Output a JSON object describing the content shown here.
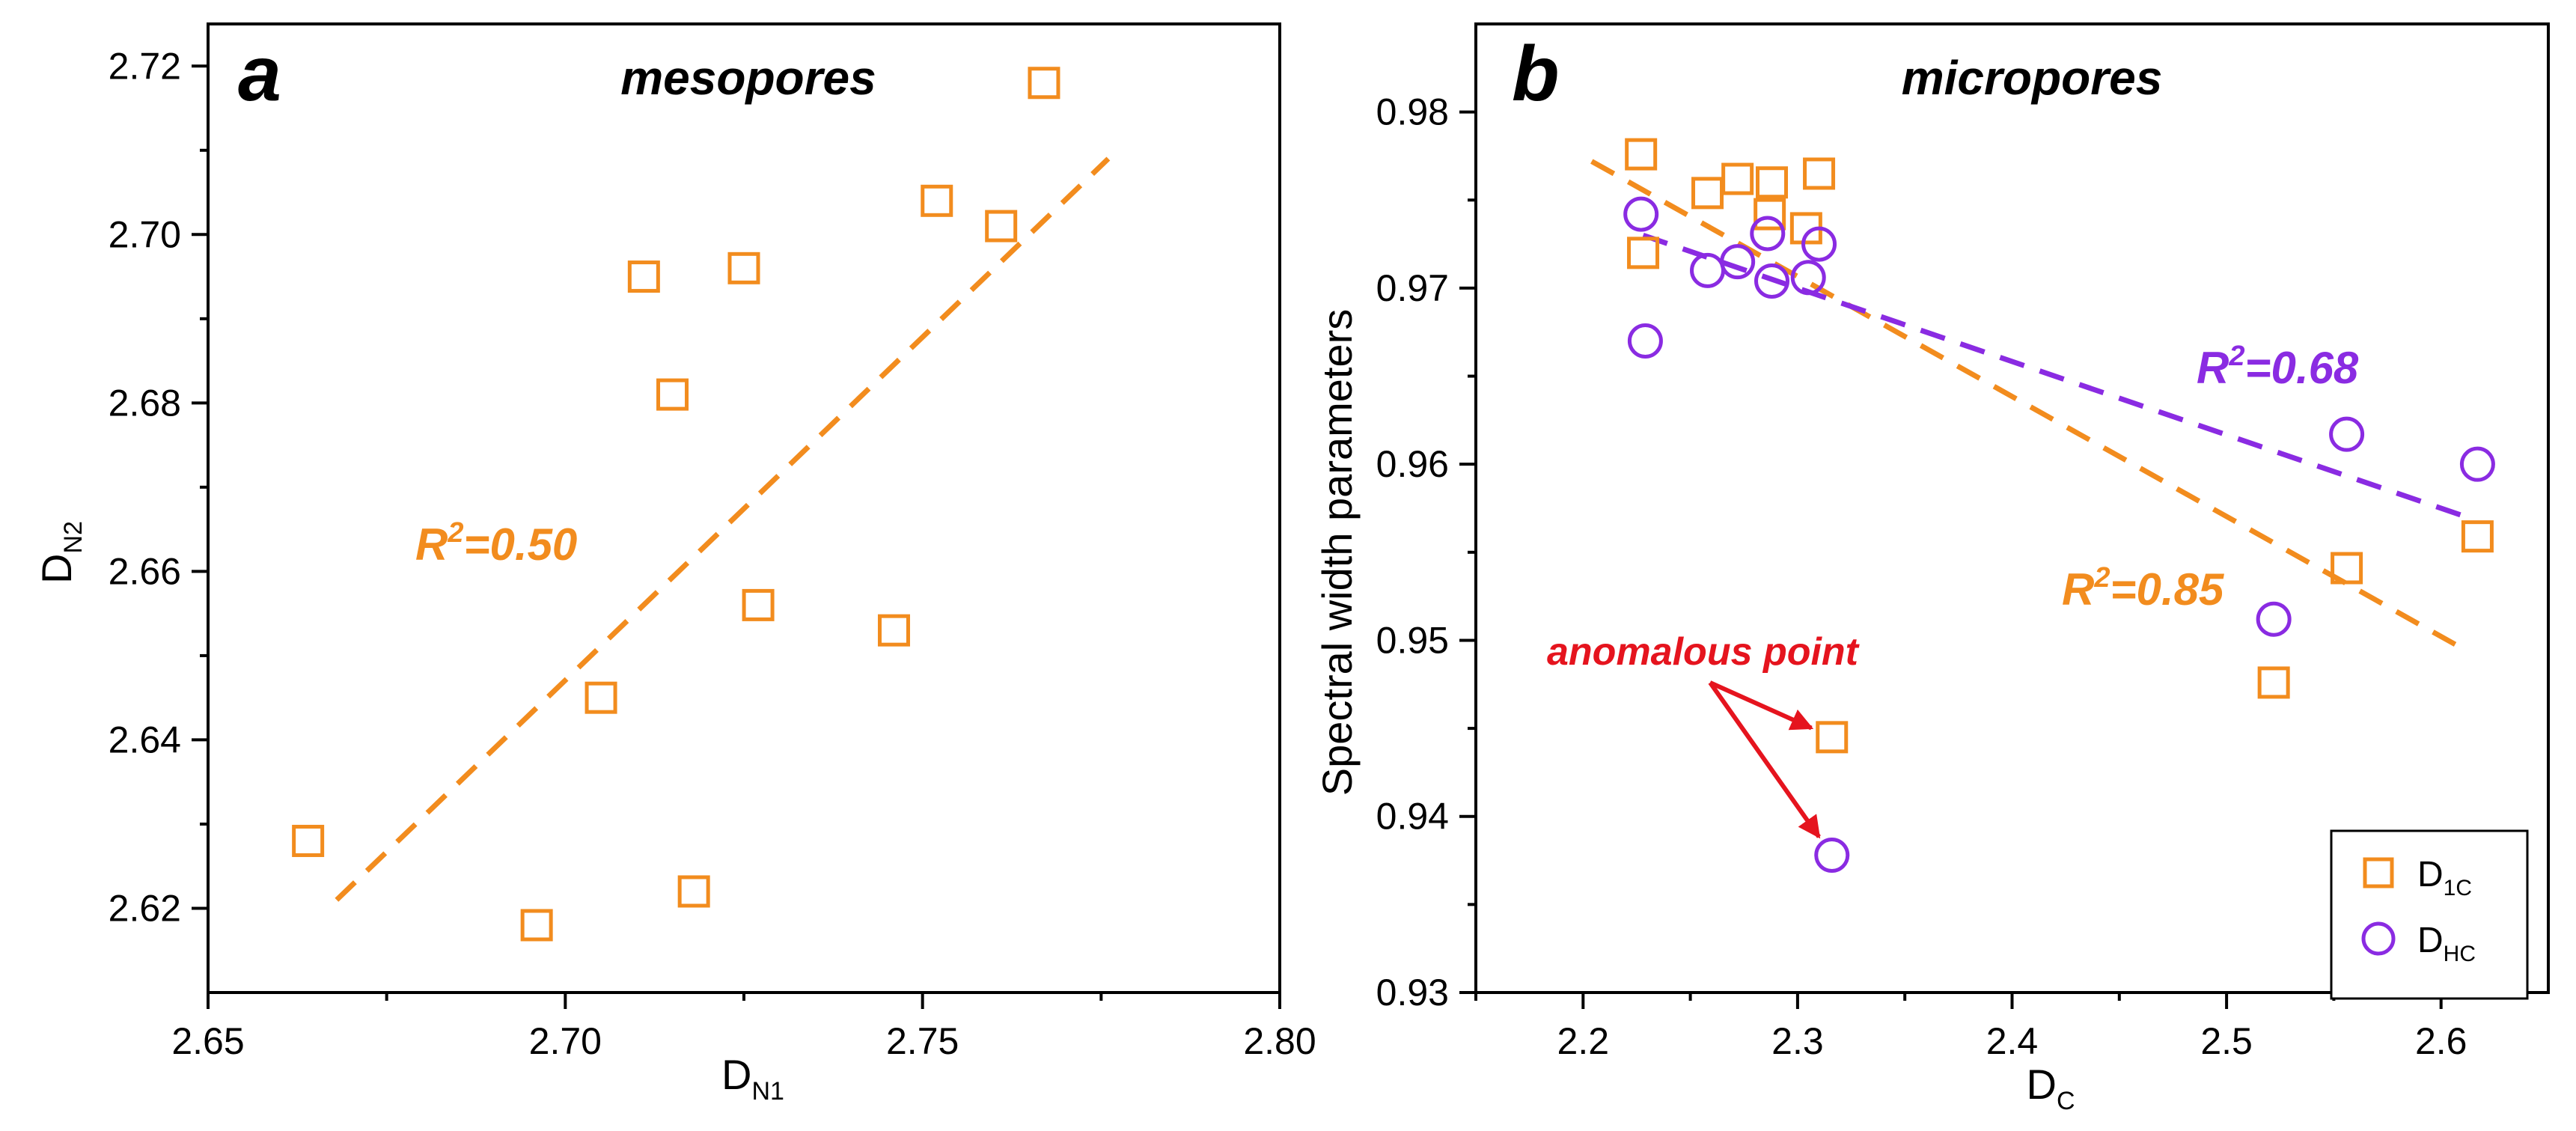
{
  "colors": {
    "orange": "#F28C1E",
    "purple": "#8A2BE2",
    "red": "#E5141E"
  },
  "chart_data": [
    {
      "type": "scatter",
      "panel_label": "a",
      "title": "mesopores",
      "xlabel": "D",
      "xlabel_sub": "N1",
      "ylabel": "D",
      "ylabel_sub": "N2",
      "xlim": [
        2.65,
        2.8
      ],
      "ylim": [
        2.61,
        2.725
      ],
      "x_ticks": [
        2.65,
        2.7,
        2.75,
        2.8
      ],
      "x_tick_labels": [
        "2.65",
        "2.70",
        "2.75",
        "2.80"
      ],
      "y_ticks": [
        2.62,
        2.64,
        2.66,
        2.68,
        2.7,
        2.72
      ],
      "y_tick_labels": [
        "2.62",
        "2.64",
        "2.66",
        "2.68",
        "2.70",
        "2.72"
      ],
      "series": [
        {
          "name": "points",
          "marker": "square",
          "color": "#F28C1E",
          "x": [
            2.664,
            2.696,
            2.705,
            2.711,
            2.715,
            2.718,
            2.725,
            2.727,
            2.746,
            2.752,
            2.761,
            2.767
          ],
          "y": [
            2.628,
            2.618,
            2.645,
            2.695,
            2.681,
            2.622,
            2.696,
            2.656,
            2.653,
            2.704,
            2.701,
            2.718
          ]
        }
      ],
      "fit_lines": [
        {
          "name": "fit",
          "color": "#F28C1E",
          "x": [
            2.668,
            2.776
          ],
          "y": [
            2.621,
            2.709
          ]
        }
      ],
      "annotations": [
        {
          "base": "R",
          "sup": "2",
          "tail": "=0.50",
          "color": "#F28C1E"
        }
      ]
    },
    {
      "type": "scatter",
      "panel_label": "b",
      "title": "micropores",
      "xlabel": "D",
      "xlabel_sub": "C",
      "ylabel": "Spectral width parameters",
      "xlim": [
        2.15,
        2.65
      ],
      "ylim": [
        0.93,
        0.985
      ],
      "x_ticks": [
        2.2,
        2.3,
        2.4,
        2.5,
        2.6
      ],
      "x_tick_labels": [
        "2.2",
        "2.3",
        "2.4",
        "2.5",
        "2.6"
      ],
      "y_ticks": [
        0.93,
        0.94,
        0.95,
        0.96,
        0.97,
        0.98
      ],
      "y_tick_labels": [
        "0.93",
        "0.94",
        "0.95",
        "0.96",
        "0.97",
        "0.98"
      ],
      "series": [
        {
          "name": "D1C",
          "legend_base": "D",
          "legend_sub": "1C",
          "marker": "square",
          "color": "#F28C1E",
          "x": [
            2.227,
            2.228,
            2.258,
            2.272,
            2.287,
            2.288,
            2.304,
            2.31,
            2.316,
            2.522,
            2.556,
            2.617
          ],
          "y": [
            0.9776,
            0.972,
            0.9754,
            0.9762,
            0.9742,
            0.976,
            0.9734,
            0.9765,
            0.9445,
            0.9476,
            0.9541,
            0.9559
          ]
        },
        {
          "name": "DHC",
          "legend_base": "D",
          "legend_sub": "HC",
          "marker": "circle",
          "color": "#8A2BE2",
          "x": [
            2.227,
            2.229,
            2.258,
            2.272,
            2.286,
            2.288,
            2.305,
            2.31,
            2.316,
            2.522,
            2.556,
            2.617
          ],
          "y": [
            0.9742,
            0.967,
            0.971,
            0.9715,
            0.9731,
            0.9704,
            0.9706,
            0.9725,
            0.9378,
            0.9512,
            0.9617,
            0.96
          ]
        }
      ],
      "fit_lines": [
        {
          "name": "D1C fit",
          "color": "#F28C1E",
          "x": [
            2.204,
            2.612
          ],
          "y": [
            0.9772,
            0.9494
          ]
        },
        {
          "name": "DHC fit",
          "color": "#8A2BE2",
          "x": [
            2.228,
            2.612
          ],
          "y": [
            0.973,
            0.957
          ]
        }
      ],
      "annotations": [
        {
          "base": "R",
          "sup": "2",
          "tail": "=0.68",
          "color": "#8A2BE2"
        },
        {
          "base": "R",
          "sup": "2",
          "tail": "=0.85",
          "color": "#F28C1E"
        },
        {
          "text": "anomalous point",
          "color": "#E5141E",
          "arrow_targets": [
            [
              2.316,
              0.9445
            ],
            [
              2.316,
              0.9378
            ]
          ]
        }
      ]
    }
  ]
}
